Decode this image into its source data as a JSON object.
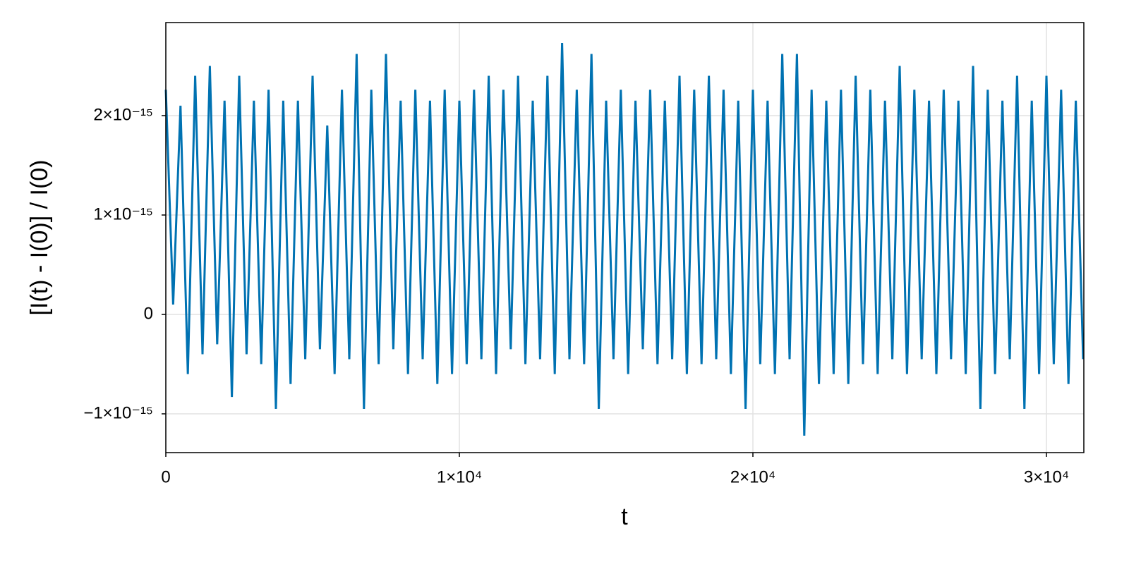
{
  "chart_data": {
    "type": "line",
    "x_label": "t",
    "y_label": "[I(t) - I(0)] / I(0)",
    "xlim": [
      0,
      31274
    ],
    "ylim": [
      -1.39e-15,
      2.936e-15
    ],
    "xticks": [
      0,
      {
        "value": 10000,
        "label": "1×10⁴"
      },
      {
        "value": 20000,
        "label": "2×10⁴"
      },
      {
        "value": 30000,
        "label": "3×10⁴"
      }
    ],
    "yticks": [
      {
        "value": -1e-15,
        "label": "−1×10⁻¹⁵"
      },
      0,
      {
        "value": 1e-15,
        "label": "1×10⁻¹⁵"
      },
      {
        "value": 2e-15,
        "label": "2×10⁻¹⁵"
      }
    ],
    "grid": true,
    "x": [
      0,
      250,
      500,
      750,
      1000,
      1250,
      1500,
      1750,
      2000,
      2250,
      2500,
      2750,
      3000,
      3250,
      3500,
      3750,
      4000,
      4250,
      4500,
      4750,
      5000,
      5250,
      5500,
      5750,
      6000,
      6250,
      6500,
      6750,
      7000,
      7250,
      7500,
      7750,
      8000,
      8250,
      8500,
      8750,
      9000,
      9250,
      9500,
      9750,
      10000,
      10250,
      10500,
      10750,
      11000,
      11250,
      11500,
      11750,
      12000,
      12250,
      12500,
      12750,
      13000,
      13250,
      13500,
      13750,
      14000,
      14250,
      14500,
      14750,
      15000,
      15250,
      15500,
      15750,
      16000,
      16250,
      16500,
      16750,
      17000,
      17250,
      17500,
      17750,
      18000,
      18250,
      18500,
      18750,
      19000,
      19250,
      19500,
      19750,
      20000,
      20250,
      20500,
      20750,
      21000,
      21250,
      21500,
      21750,
      22000,
      22250,
      22500,
      22750,
      23000,
      23250,
      23500,
      23750,
      24000,
      24250,
      24500,
      24750,
      25000,
      25250,
      25500,
      25750,
      26000,
      26250,
      26500,
      26750,
      27000,
      27250,
      27500,
      27750,
      28000,
      28250,
      28500,
      28750,
      29000,
      29250,
      29500,
      29750,
      30000,
      30250,
      30500,
      30750,
      31000,
      31250
    ],
    "series": [
      {
        "color": "#0072b2",
        "values": [
          2.26e-15,
          1e-16,
          2.1e-15,
          -6e-16,
          2.4e-15,
          -4e-16,
          2.5e-15,
          -3e-16,
          2.15e-15,
          -8.3e-16,
          2.4e-15,
          -4e-16,
          2.15e-15,
          -5e-16,
          2.26e-15,
          -9.5e-16,
          2.15e-15,
          -7e-16,
          2.15e-15,
          -4.5e-16,
          2.4e-15,
          -3.5e-16,
          1.9e-15,
          -6e-16,
          2.26e-15,
          -4.5e-16,
          2.62e-15,
          -9.5e-16,
          2.26e-15,
          -5e-16,
          2.62e-15,
          -3.5e-16,
          2.15e-15,
          -6e-16,
          2.26e-15,
          -4.5e-16,
          2.15e-15,
          -7e-16,
          2.26e-15,
          -6e-16,
          2.15e-15,
          -5e-16,
          2.26e-15,
          -4.5e-16,
          2.4e-15,
          -6e-16,
          2.26e-15,
          -3.5e-16,
          2.4e-15,
          -5e-16,
          2.15e-15,
          -4.5e-16,
          2.4e-15,
          -6e-16,
          2.73e-15,
          -4.5e-16,
          2.26e-15,
          -5e-16,
          2.62e-15,
          -9.5e-16,
          2.15e-15,
          -4.5e-16,
          2.26e-15,
          -6e-16,
          2.15e-15,
          -3.5e-16,
          2.26e-15,
          -5e-16,
          2.15e-15,
          -4.5e-16,
          2.4e-15,
          -6e-16,
          2.26e-15,
          -5e-16,
          2.4e-15,
          -4.5e-16,
          2.26e-15,
          -6e-16,
          2.15e-15,
          -9.5e-16,
          2.26e-15,
          -5e-16,
          2.15e-15,
          -6e-16,
          2.62e-15,
          -4.5e-16,
          2.62e-15,
          -1.22e-15,
          2.26e-15,
          -7e-16,
          2.15e-15,
          -6e-16,
          2.26e-15,
          -7e-16,
          2.4e-15,
          -5e-16,
          2.26e-15,
          -6e-16,
          2.15e-15,
          -4.5e-16,
          2.5e-15,
          -6e-16,
          2.26e-15,
          -4.5e-16,
          2.15e-15,
          -6e-16,
          2.26e-15,
          -4.5e-16,
          2.15e-15,
          -6e-16,
          2.5e-15,
          -9.5e-16,
          2.26e-15,
          -6e-16,
          2.15e-15,
          -4.5e-16,
          2.4e-15,
          -9.5e-16,
          2.15e-15,
          -6e-16,
          2.4e-15,
          -5e-16,
          2.26e-15,
          -7e-16,
          2.15e-15,
          -4.5e-16
        ]
      }
    ]
  }
}
